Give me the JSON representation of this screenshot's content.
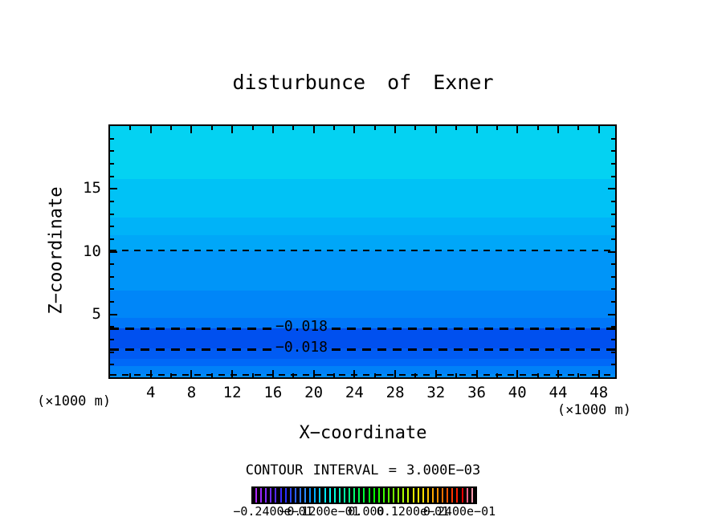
{
  "chart_data": {
    "type": "heatmap",
    "title": "disturbunce of Exner",
    "xlabel": "X−coordinate",
    "ylabel": "Z−coordinate",
    "x_unit_label_left": "(×1000 m)",
    "x_unit_label_right": "(×1000 m)",
    "xlim": [
      0,
      49.6
    ],
    "ylim": [
      0,
      20
    ],
    "x_major_ticks": [
      4,
      8,
      12,
      16,
      20,
      24,
      28,
      32,
      36,
      40,
      44,
      48
    ],
    "x_minor_step": 2,
    "y_major_ticks": [
      5,
      10,
      15
    ],
    "y_minor_step": 1,
    "contour_interval_text": "CONTOUR INTERVAL = 3.000E−03",
    "fill_bands": [
      {
        "z_from": 15.8,
        "z_to": 20.0,
        "color": "#04d2f2"
      },
      {
        "z_from": 12.7,
        "z_to": 15.8,
        "color": "#00c2f6"
      },
      {
        "z_from": 11.3,
        "z_to": 12.7,
        "color": "#00b3f8"
      },
      {
        "z_from": 10.1,
        "z_to": 11.3,
        "color": "#00a7f8"
      },
      {
        "z_from": 6.9,
        "z_to": 10.1,
        "color": "#0095f8"
      },
      {
        "z_from": 4.7,
        "z_to": 6.9,
        "color": "#0086f8"
      },
      {
        "z_from": 3.9,
        "z_to": 4.7,
        "color": "#0076f8"
      },
      {
        "z_from": 2.3,
        "z_to": 3.9,
        "color": "#0050ef"
      },
      {
        "z_from": 1.5,
        "z_to": 2.3,
        "color": "#005bf3"
      },
      {
        "z_from": 0.9,
        "z_to": 1.5,
        "color": "#0069f8"
      },
      {
        "z_from": 0.25,
        "z_to": 0.9,
        "color": "#0081f8"
      },
      {
        "z_from": 0.0,
        "z_to": 0.25,
        "color": "#008df8"
      }
    ],
    "dashed_contours": [
      {
        "z": 10.15,
        "weight": "thin",
        "label": null
      },
      {
        "z": 3.95,
        "weight": "bold",
        "label": "−0.018"
      },
      {
        "z": 2.3,
        "weight": "bold",
        "label": "−0.018"
      },
      {
        "z": 0.28,
        "weight": "thin",
        "label": null
      }
    ],
    "colorbar": {
      "tick_labels": [
        "−0.2400e−01",
        "−0.1200e−01",
        "0.000",
        "0.1200e−01",
        "0.2400e−01"
      ],
      "stripe_count": 45,
      "hue_start": 278,
      "hue_end": 0,
      "tail_colors": [
        "hsl(347,100%,70%)",
        "hsl(350,100%,80%)"
      ]
    },
    "frame_color": "#000000",
    "background_color": "#ffffff"
  }
}
